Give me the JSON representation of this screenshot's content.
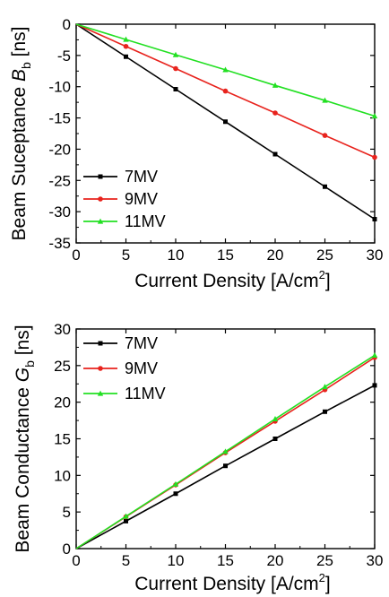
{
  "chart_data": [
    {
      "type": "line",
      "xlabel": "Current Density [A/cm²]",
      "ylabel": "Beam Suceptance B_b [ns]",
      "ylabel_parts": {
        "pre": "Beam Suceptance ",
        "symbol": "B",
        "sub": "b",
        "post": " [ns]"
      },
      "xlabel_parts": {
        "pre": "Current Density [A/cm",
        "sup": "2",
        "post": "]"
      },
      "xlim": [
        0,
        30
      ],
      "ylim": [
        -35,
        0
      ],
      "xticks": [
        0,
        5,
        10,
        15,
        20,
        25,
        30
      ],
      "yticks": [
        -35,
        -30,
        -25,
        -20,
        -15,
        -10,
        -5,
        0
      ],
      "x": [
        0,
        5,
        10,
        15,
        20,
        25,
        30
      ],
      "legend_position": "bottom-left",
      "grid": false,
      "series": [
        {
          "name": "7MV",
          "color": "#000000",
          "marker": "square",
          "values": [
            0,
            -5.2,
            -10.4,
            -15.6,
            -20.8,
            -26.0,
            -31.2
          ]
        },
        {
          "name": "9MV",
          "color": "#e8231d",
          "marker": "circle",
          "values": [
            0,
            -3.55,
            -7.1,
            -10.7,
            -14.2,
            -17.8,
            -21.3
          ]
        },
        {
          "name": "11MV",
          "color": "#22e022",
          "marker": "triangle",
          "values": [
            0,
            -2.45,
            -4.9,
            -7.3,
            -9.8,
            -12.2,
            -14.7
          ]
        }
      ]
    },
    {
      "type": "line",
      "xlabel": "Current Density [A/cm²]",
      "ylabel": "Beam Conductance G_b [ns]",
      "ylabel_parts": {
        "pre": "Beam Conductance ",
        "symbol": "G",
        "sub": "b",
        "post": " [ns]"
      },
      "xlabel_parts": {
        "pre": "Current Density [A/cm",
        "sup": "2",
        "post": "]"
      },
      "xlim": [
        0,
        30
      ],
      "ylim": [
        0,
        30
      ],
      "xticks": [
        0,
        5,
        10,
        15,
        20,
        25,
        30
      ],
      "yticks": [
        0,
        5,
        10,
        15,
        20,
        25,
        30
      ],
      "x": [
        0,
        5,
        10,
        15,
        20,
        25,
        30
      ],
      "legend_position": "top-left",
      "grid": false,
      "series": [
        {
          "name": "7MV",
          "color": "#000000",
          "marker": "square",
          "values": [
            0,
            3.75,
            7.5,
            11.3,
            15.0,
            18.7,
            22.3
          ]
        },
        {
          "name": "9MV",
          "color": "#e8231d",
          "marker": "circle",
          "values": [
            0,
            4.35,
            8.7,
            13.1,
            17.4,
            21.7,
            26.1
          ]
        },
        {
          "name": "11MV",
          "color": "#22e022",
          "marker": "triangle",
          "values": [
            0,
            4.4,
            8.8,
            13.25,
            17.7,
            22.1,
            26.4
          ]
        }
      ]
    }
  ]
}
